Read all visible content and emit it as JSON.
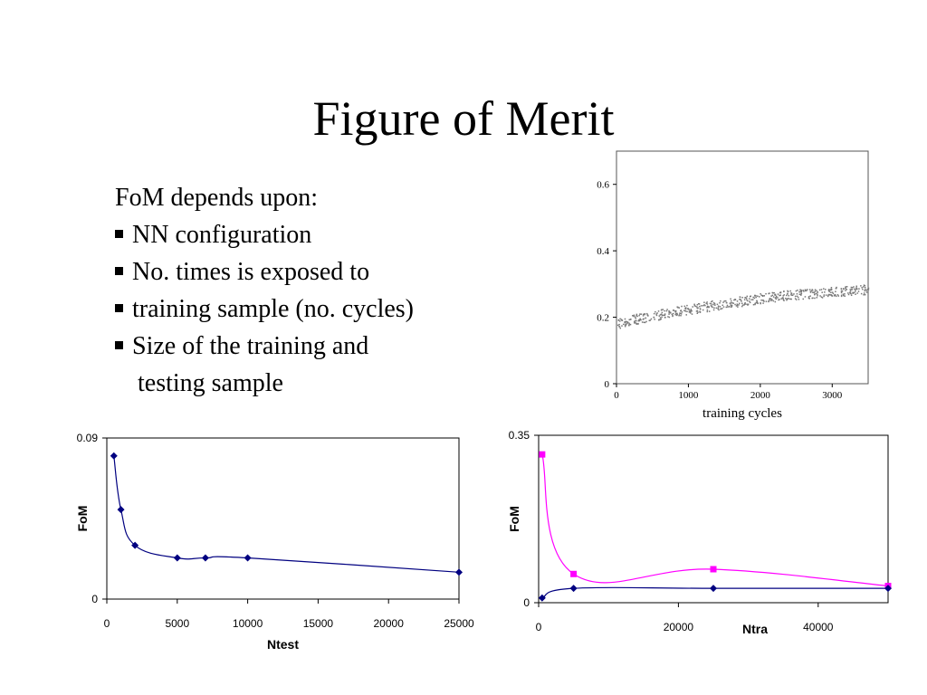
{
  "slide": {
    "title": "Figure of Merit",
    "intro": "FoM depends upon:",
    "bullets": [
      "NN configuration",
      "No. times is exposed to",
      "training sample (no. cycles)",
      "Size of the training and",
      "testing sample"
    ]
  },
  "chart_data": [
    {
      "type": "scatter",
      "xlabel": "training cycles",
      "ylabel": "",
      "xlim": [
        0,
        3500
      ],
      "ylim": [
        0,
        0.7
      ],
      "xticks": [
        "0",
        "1000",
        "2000",
        "3000"
      ],
      "yticks": [
        "0",
        "0.2",
        "0.4",
        "0.6"
      ],
      "series": [
        {
          "x": [
            0,
            250,
            500,
            750,
            1000,
            1250,
            1500,
            1750,
            2000,
            2250,
            2500,
            2750,
            3000,
            3250,
            3500
          ],
          "values": [
            0.18,
            0.195,
            0.205,
            0.215,
            0.225,
            0.233,
            0.242,
            0.25,
            0.258,
            0.264,
            0.27,
            0.274,
            0.278,
            0.282,
            0.285
          ]
        }
      ],
      "color": "#777777"
    },
    {
      "type": "line",
      "xlabel": "Ntest",
      "ylabel": "FoM",
      "xlim": [
        0,
        25000
      ],
      "ylim": [
        0,
        0.09
      ],
      "xticks": [
        "0",
        "5000",
        "10000",
        "15000",
        "20000",
        "25000"
      ],
      "yticks": [
        "0",
        "0.09"
      ],
      "series": [
        {
          "x": [
            500,
            1000,
            2000,
            5000,
            7000,
            10000,
            25000
          ],
          "values": [
            0.08,
            0.05,
            0.03,
            0.023,
            0.023,
            0.023,
            0.015
          ],
          "color": "#000080"
        }
      ]
    },
    {
      "type": "line",
      "xlabel": "Ntra",
      "ylabel": "FoM",
      "xlim": [
        0,
        50000
      ],
      "ylim": [
        0,
        0.35
      ],
      "xticks": [
        "0",
        "20000",
        "40000"
      ],
      "yticks": [
        "0",
        "0.35"
      ],
      "series": [
        {
          "x": [
            500,
            5000,
            25000,
            50000
          ],
          "values": [
            0.31,
            0.06,
            0.07,
            0.035
          ],
          "color": "#ff00ff"
        },
        {
          "x": [
            500,
            5000,
            25000,
            50000
          ],
          "values": [
            0.01,
            0.03,
            0.03,
            0.03
          ],
          "color": "#000080"
        }
      ]
    }
  ]
}
